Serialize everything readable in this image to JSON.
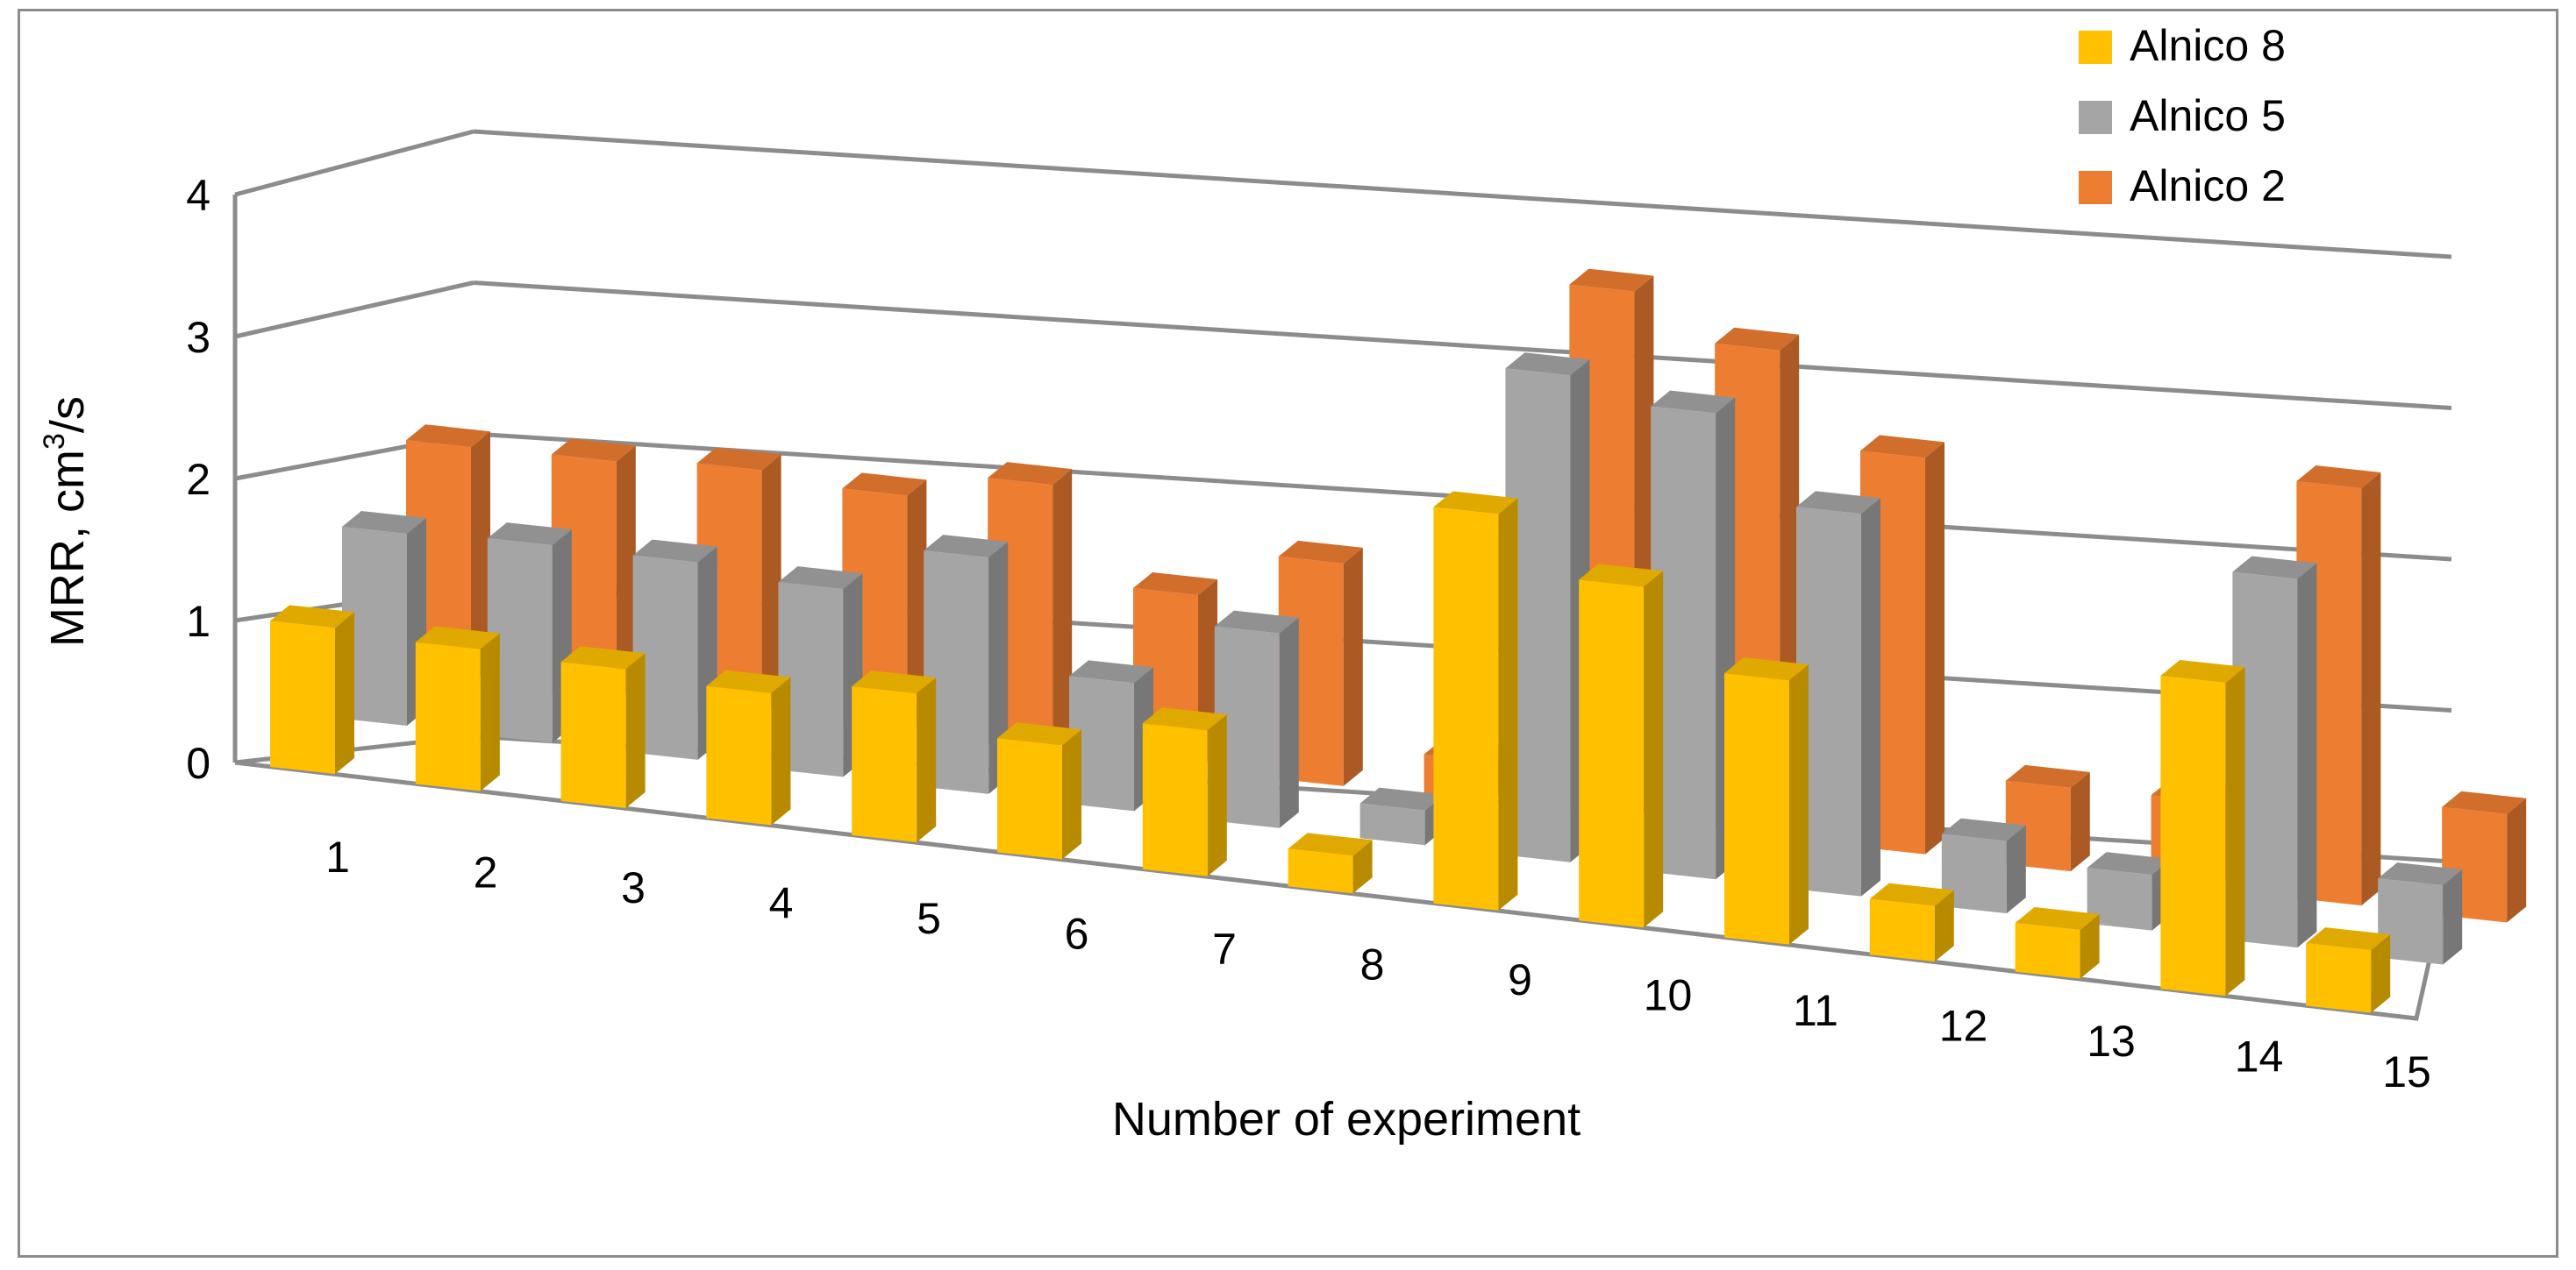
{
  "chart_data": {
    "type": "bar",
    "subtype": "3d-clustered-column",
    "title": "",
    "xlabel": "Number of experiment",
    "ylabel_prefix": "MRR, cm",
    "ylabel_sup": "3",
    "ylabel_suffix": "/s",
    "ylim": [
      0,
      4
    ],
    "yticks": [
      "0",
      "1",
      "2",
      "3",
      "4"
    ],
    "grid": true,
    "legend_position": "top-right",
    "categories": [
      "1",
      "2",
      "3",
      "4",
      "5",
      "6",
      "7",
      "8",
      "9",
      "10",
      "11",
      "12",
      "13",
      "14",
      "15"
    ],
    "series": [
      {
        "name": "Alnico 8",
        "color": "#FFC000",
        "values": [
          1.05,
          1.02,
          1.0,
          0.95,
          1.07,
          0.82,
          1.05,
          0.27,
          2.85,
          2.45,
          1.9,
          0.4,
          0.35,
          2.25,
          0.45
        ]
      },
      {
        "name": "Alnico 5",
        "color": "#A5A5A5",
        "values": [
          1.38,
          1.42,
          1.42,
          1.35,
          1.7,
          0.92,
          1.4,
          0.25,
          3.5,
          3.35,
          2.75,
          0.52,
          0.4,
          2.65,
          0.57
        ]
      },
      {
        "name": "Alnico 2",
        "color": "#ED7D31",
        "values": [
          1.7,
          1.72,
          1.78,
          1.72,
          1.92,
          1.25,
          1.6,
          0.3,
          3.8,
          3.5,
          2.85,
          0.6,
          0.62,
          3.0,
          0.78
        ]
      }
    ]
  }
}
